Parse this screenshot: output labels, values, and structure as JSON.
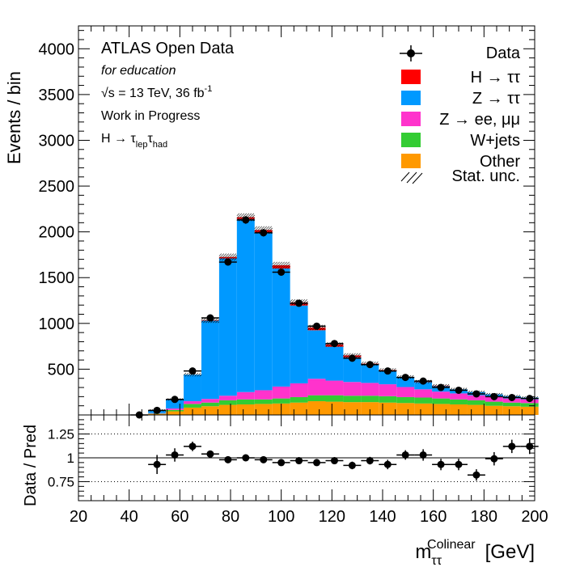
{
  "chart_data": [
    {
      "type": "bar",
      "stacked": true,
      "bins": [
        44,
        51,
        58,
        65,
        72,
        79,
        86,
        93,
        100,
        107,
        114,
        121,
        128,
        135,
        142,
        149,
        156,
        163,
        170,
        177,
        184,
        191,
        198
      ],
      "series": [
        {
          "name": "Other",
          "color": "#ff9900",
          "values": [
            0,
            10,
            40,
            80,
            95,
            110,
            115,
            120,
            125,
            135,
            150,
            145,
            140,
            140,
            135,
            130,
            125,
            120,
            115,
            110,
            100,
            95,
            90
          ]
        },
        {
          "name": "W+jets",
          "color": "#33cc33",
          "values": [
            0,
            5,
            15,
            40,
            40,
            50,
            55,
            50,
            55,
            60,
            65,
            70,
            70,
            70,
            70,
            65,
            65,
            60,
            55,
            50,
            45,
            40,
            40
          ]
        },
        {
          "name": "Z → ee, μμ",
          "color": "#ff33cc",
          "values": [
            0,
            5,
            15,
            30,
            40,
            50,
            80,
            100,
            130,
            150,
            180,
            160,
            150,
            140,
            130,
            110,
            90,
            75,
            65,
            55,
            50,
            45,
            40
          ]
        },
        {
          "name": "Z → ττ",
          "color": "#0099ff",
          "values": [
            0,
            30,
            100,
            290,
            855,
            1500,
            1890,
            1720,
            1290,
            850,
            530,
            370,
            270,
            195,
            145,
            105,
            80,
            60,
            45,
            35,
            30,
            25,
            20
          ]
        },
        {
          "name": "H → ττ",
          "color": "#ff0000",
          "values": [
            0,
            0,
            0,
            0,
            5,
            15,
            20,
            30,
            35,
            35,
            30,
            25,
            20,
            15,
            10,
            5,
            5,
            5,
            0,
            0,
            0,
            0,
            0
          ]
        }
      ],
      "data": {
        "name": "Data",
        "x": [
          44,
          51,
          58,
          65,
          72,
          79,
          86,
          93,
          100,
          107,
          114,
          121,
          128,
          135,
          142,
          149,
          156,
          163,
          170,
          177,
          184,
          191,
          198
        ],
        "y": [
          0,
          50,
          170,
          480,
          1060,
          1670,
          2130,
          1990,
          1560,
          1220,
          970,
          780,
          620,
          550,
          480,
          410,
          370,
          300,
          270,
          230,
          200,
          190,
          180
        ]
      },
      "xlim": [
        20,
        200
      ],
      "ylim": [
        0,
        4250
      ],
      "y_ticks": [
        500,
        1000,
        1500,
        2000,
        2500,
        3000,
        3500,
        4000
      ],
      "ylabel": "Events / bin",
      "legend_position": "top-right",
      "legend": {
        "data": "Data",
        "entries": [
          "H → ττ",
          "Z → ττ",
          "Z → ee, μμ",
          "W+jets",
          "Other"
        ],
        "stat": "Stat. unc."
      },
      "annotations": {
        "title": "ATLAS Open Data",
        "subtitle": "for education",
        "energy_prefix": "√s = 13 TeV, 36 fb",
        "energy_sup": "-1",
        "status": "Work in Progress",
        "channel_main": "H → τ",
        "channel_sub1": "lep",
        "channel_tau": "τ",
        "channel_sub2": "had"
      }
    },
    {
      "type": "scatter",
      "x": [
        51,
        58,
        65,
        72,
        79,
        86,
        93,
        100,
        107,
        114,
        121,
        128,
        135,
        142,
        149,
        156,
        163,
        170,
        177,
        184,
        191,
        198
      ],
      "y": [
        0.93,
        1.03,
        1.12,
        1.04,
        0.98,
        1.0,
        0.98,
        0.95,
        0.97,
        0.95,
        0.97,
        0.92,
        0.97,
        0.93,
        1.03,
        1.03,
        0.93,
        0.93,
        0.82,
        0.99,
        1.12,
        1.12
      ],
      "yerr": [
        0.1,
        0.07,
        0.05,
        0.03,
        0.02,
        0.02,
        0.02,
        0.02,
        0.02,
        0.03,
        0.03,
        0.04,
        0.04,
        0.05,
        0.05,
        0.06,
        0.06,
        0.06,
        0.06,
        0.07,
        0.07,
        0.08
      ],
      "xlim": [
        20,
        200
      ],
      "ylim": [
        0.55,
        1.45
      ],
      "y_ticks": [
        0.75,
        1,
        1.25
      ],
      "y_tick_labels": [
        "0.75",
        "1",
        "1.25"
      ],
      "x_ticks": [
        20,
        40,
        60,
        80,
        100,
        120,
        140,
        160,
        180,
        200
      ],
      "ylabel": "Data / Pred",
      "xlabel_main": "m",
      "xlabel_sub": "ττ",
      "xlabel_sup": "Colinear",
      "xlabel_unit": "[GeV]"
    }
  ]
}
